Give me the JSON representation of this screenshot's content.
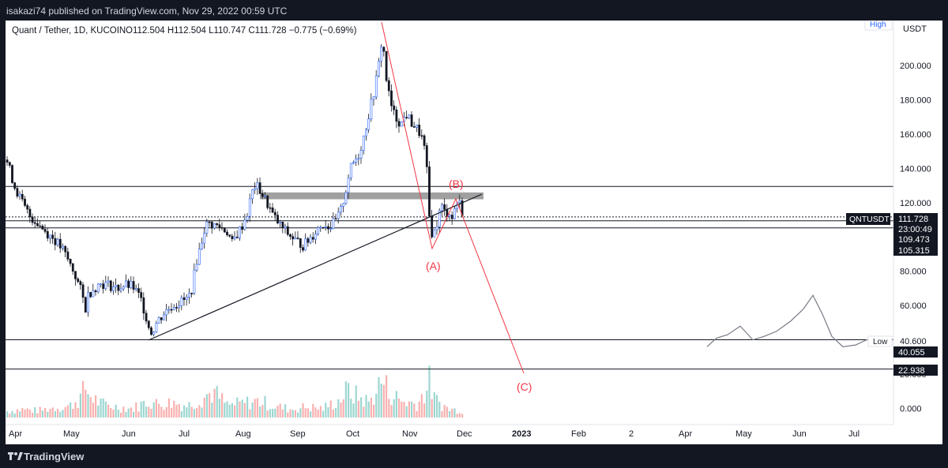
{
  "header": {
    "published": "isakazi74 published on TradingView.com, Nov 29, 2022 00:59 UTC"
  },
  "footer": {
    "brand": "TradingView"
  },
  "legend": {
    "symbol": "Quant / Tether, 1D, KUCOIN",
    "ohlc": "O112.504  H112.504  L110.747  C111.728  −0.775 (−0.69%)"
  },
  "chart_data": {
    "type": "candlestick",
    "symbol": "QNTUSDT",
    "currency": "USDT",
    "y_ticks": [
      "200.000",
      "180.000",
      "160.000",
      "140.000",
      "120.000",
      "80.000",
      "60.000",
      "20.000",
      "0.000"
    ],
    "ylim": [
      -3,
      228
    ],
    "x_ticks": [
      "Apr",
      "May",
      "Jun",
      "Jul",
      "Aug",
      "Sep",
      "Oct",
      "Nov",
      "Dec",
      "2023",
      "Feb",
      "2",
      "Apr",
      "May",
      "Jun",
      "Jul"
    ],
    "price_labels": {
      "last_symbol": "QNTUSDT",
      "last_price": "111.728",
      "countdown": "23:00:49",
      "level_1": "109.473",
      "level_2": "105.315",
      "low_label": "Low",
      "low_value": "40.600",
      "level_3": "40.055",
      "level_4": "22.938",
      "high_label": "High"
    },
    "horizontal_levels": [
      129.5,
      111.7,
      109.473,
      105.315,
      40.055,
      22.938
    ],
    "supply_zone": [
      122,
      126
    ],
    "wave_labels": [
      "(A)",
      "(B)",
      "(C)"
    ],
    "price_path": [
      [
        0,
        145
      ],
      [
        5,
        138
      ],
      [
        10,
        130
      ],
      [
        15,
        125
      ],
      [
        22,
        118
      ],
      [
        30,
        112
      ],
      [
        40,
        108
      ],
      [
        50,
        103
      ],
      [
        60,
        99
      ],
      [
        72,
        92
      ],
      [
        85,
        80
      ],
      [
        95,
        68
      ],
      [
        100,
        58
      ],
      [
        103,
        66
      ],
      [
        110,
        70
      ],
      [
        120,
        73
      ],
      [
        130,
        72
      ],
      [
        140,
        70
      ],
      [
        150,
        72
      ],
      [
        160,
        71
      ],
      [
        170,
        64
      ],
      [
        176,
        55
      ],
      [
        180,
        48
      ],
      [
        184,
        44
      ],
      [
        190,
        50
      ],
      [
        200,
        56
      ],
      [
        210,
        60
      ],
      [
        220,
        62
      ],
      [
        230,
        64
      ],
      [
        236,
        72
      ],
      [
        240,
        85
      ],
      [
        246,
        95
      ],
      [
        250,
        104
      ],
      [
        255,
        108
      ],
      [
        262,
        107
      ],
      [
        270,
        106
      ],
      [
        280,
        103
      ],
      [
        286,
        96
      ],
      [
        290,
        100
      ],
      [
        298,
        106
      ],
      [
        306,
        115
      ],
      [
        310,
        125
      ],
      [
        315,
        130
      ],
      [
        320,
        128
      ],
      [
        326,
        123
      ],
      [
        332,
        118
      ],
      [
        338,
        112
      ],
      [
        346,
        107
      ],
      [
        356,
        102
      ],
      [
        366,
        98
      ],
      [
        376,
        95
      ],
      [
        386,
        100
      ],
      [
        394,
        105
      ],
      [
        402,
        108
      ],
      [
        410,
        106
      ],
      [
        418,
        110
      ],
      [
        424,
        116
      ],
      [
        430,
        128
      ],
      [
        434,
        138
      ],
      [
        440,
        144
      ],
      [
        446,
        148
      ],
      [
        452,
        158
      ],
      [
        458,
        170
      ],
      [
        464,
        182
      ],
      [
        470,
        196
      ],
      [
        474,
        210
      ],
      [
        476,
        218
      ],
      [
        480,
        195
      ],
      [
        486,
        178
      ],
      [
        492,
        170
      ],
      [
        500,
        166
      ],
      [
        506,
        172
      ],
      [
        512,
        167
      ],
      [
        518,
        164
      ],
      [
        524,
        160
      ],
      [
        528,
        155
      ],
      [
        532,
        140
      ],
      [
        534,
        120
      ],
      [
        536,
        108
      ],
      [
        540,
        100
      ],
      [
        544,
        106
      ],
      [
        548,
        114
      ],
      [
        552,
        118
      ],
      [
        556,
        113
      ],
      [
        560,
        116
      ],
      [
        564,
        110
      ],
      [
        568,
        118
      ],
      [
        572,
        122
      ],
      [
        576,
        116
      ],
      [
        580,
        112
      ]
    ],
    "volume_path": [
      [
        0,
        8
      ],
      [
        20,
        11
      ],
      [
        40,
        9
      ],
      [
        60,
        13
      ],
      [
        80,
        15
      ],
      [
        95,
        28
      ],
      [
        100,
        40
      ],
      [
        105,
        30
      ],
      [
        120,
        18
      ],
      [
        140,
        14
      ],
      [
        160,
        12
      ],
      [
        180,
        22
      ],
      [
        190,
        18
      ],
      [
        210,
        20
      ],
      [
        230,
        16
      ],
      [
        250,
        28
      ],
      [
        262,
        34
      ],
      [
        280,
        16
      ],
      [
        300,
        19
      ],
      [
        320,
        22
      ],
      [
        340,
        15
      ],
      [
        360,
        11
      ],
      [
        380,
        14
      ],
      [
        400,
        12
      ],
      [
        420,
        22
      ],
      [
        432,
        36
      ],
      [
        440,
        30
      ],
      [
        460,
        20
      ],
      [
        470,
        40
      ],
      [
        476,
        50
      ],
      [
        484,
        34
      ],
      [
        500,
        22
      ],
      [
        520,
        18
      ],
      [
        532,
        38
      ],
      [
        536,
        48
      ],
      [
        542,
        24
      ],
      [
        560,
        11
      ],
      [
        580,
        9
      ]
    ],
    "projection_path": [
      [
        888,
        -4
      ],
      [
        900,
        1
      ],
      [
        914,
        3
      ],
      [
        930,
        8
      ],
      [
        946,
        0
      ],
      [
        960,
        2
      ],
      [
        976,
        5
      ],
      [
        994,
        11
      ],
      [
        1010,
        18
      ],
      [
        1022,
        26
      ],
      [
        1034,
        15
      ],
      [
        1046,
        2
      ],
      [
        1060,
        -4
      ],
      [
        1076,
        -3
      ],
      [
        1090,
        0
      ],
      [
        1110,
        1
      ]
    ]
  }
}
